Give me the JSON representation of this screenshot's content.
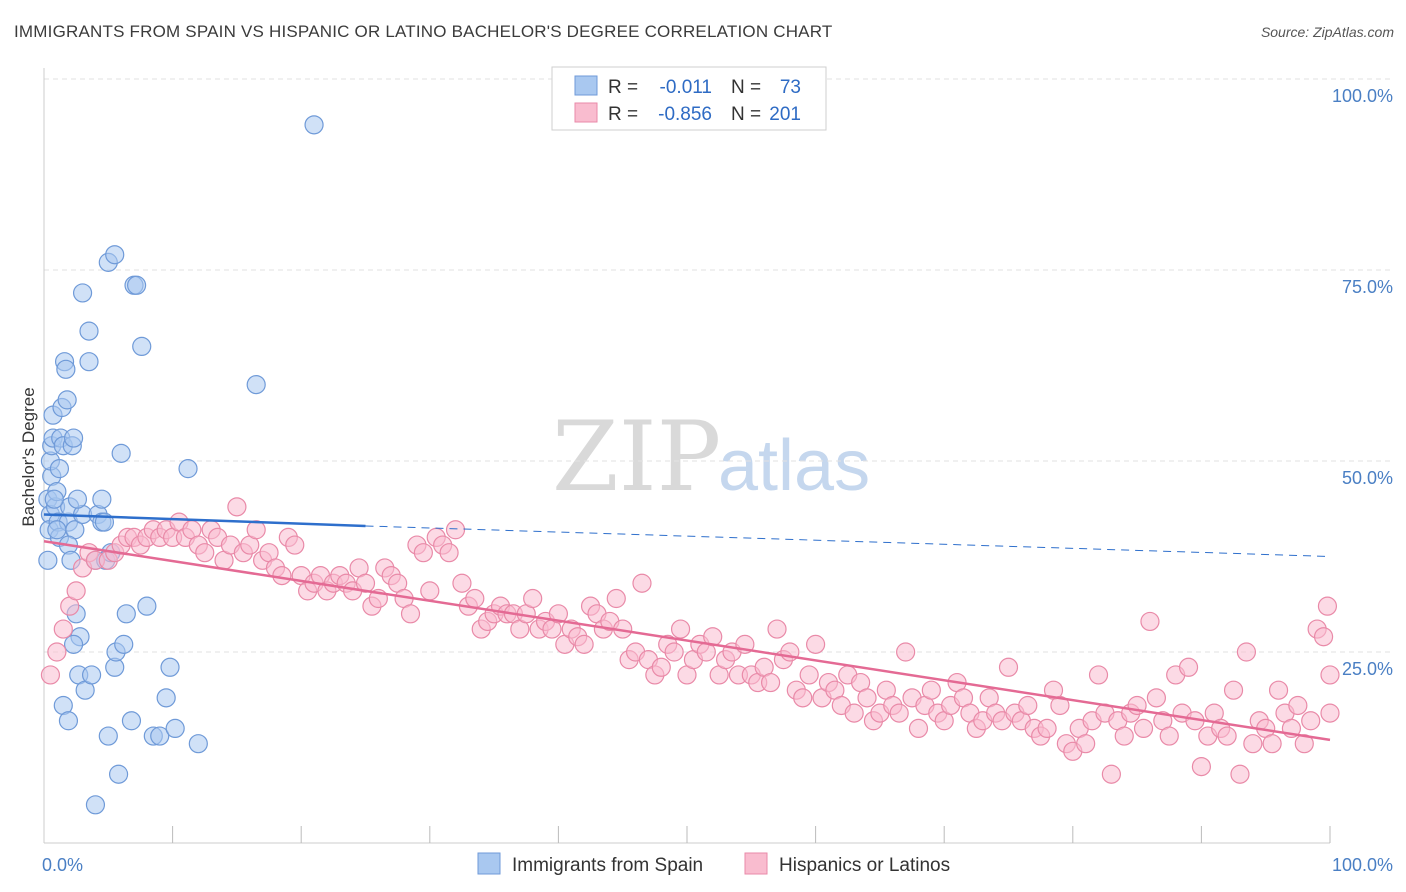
{
  "header": {
    "title": "IMMIGRANTS FROM SPAIN VS HISPANIC OR LATINO BACHELOR'S DEGREE CORRELATION CHART",
    "source": "Source: ZipAtlas.com"
  },
  "watermark": {
    "zip": "ZIP",
    "atlas": "atlas"
  },
  "legend": {
    "rows": [
      {
        "r_label": "R =",
        "r_value": "-0.011",
        "n_label": "N =",
        "n_value": "73",
        "color": "#a9c8f0",
        "stroke": "#6f9ad8"
      },
      {
        "r_label": "R =",
        "r_value": "-0.856",
        "n_label": "N =",
        "n_value": "201",
        "color": "#f9bccf",
        "stroke": "#e98aa8"
      }
    ]
  },
  "bottom_legend": [
    {
      "label": "Immigrants from Spain",
      "color": "#a9c8f0",
      "stroke": "#6f9ad8"
    },
    {
      "label": "Hispanics or Latinos",
      "color": "#f9bccf",
      "stroke": "#e98aa8"
    }
  ],
  "chart_data": {
    "type": "scatter",
    "title": "IMMIGRANTS FROM SPAIN VS HISPANIC OR LATINO BACHELOR'S DEGREE CORRELATION CHART",
    "xlabel": "",
    "ylabel": "Bachelor's Degree",
    "xlim": [
      0,
      100
    ],
    "ylim": [
      0,
      100
    ],
    "x_tick_labels": [
      {
        "value": 0,
        "label": "0.0%"
      },
      {
        "value": 100,
        "label": "100.0%"
      }
    ],
    "y_tick_labels": [
      {
        "value": 25,
        "label": "25.0%"
      },
      {
        "value": 50,
        "label": "50.0%"
      },
      {
        "value": 75,
        "label": "75.0%"
      },
      {
        "value": 100,
        "label": "100.0%"
      }
    ],
    "grid": true,
    "legend_position": "top-center",
    "series": [
      {
        "name": "Immigrants from Spain",
        "color": "#a9c8f0",
        "stroke": "#6f9ad8",
        "trend": {
          "x": [
            0,
            25
          ],
          "y": [
            43.0,
            41.5
          ],
          "dashed_to": [
            100,
            37.5
          ],
          "color": "#2e6fcc"
        },
        "points": [
          [
            0.3,
            45
          ],
          [
            0.5,
            43
          ],
          [
            0.4,
            41
          ],
          [
            0.3,
            37
          ],
          [
            0.6,
            48
          ],
          [
            0.5,
            50
          ],
          [
            0.6,
            52
          ],
          [
            0.7,
            53
          ],
          [
            0.7,
            56
          ],
          [
            0.9,
            44
          ],
          [
            1.0,
            46
          ],
          [
            1.1,
            42
          ],
          [
            1.2,
            40
          ],
          [
            1.2,
            49
          ],
          [
            1.3,
            53
          ],
          [
            1.4,
            57
          ],
          [
            1.5,
            52
          ],
          [
            1.6,
            63
          ],
          [
            1.7,
            62
          ],
          [
            1.8,
            58
          ],
          [
            1.9,
            42
          ],
          [
            2.0,
            44
          ],
          [
            2.2,
            52
          ],
          [
            2.3,
            53
          ],
          [
            2.4,
            41
          ],
          [
            1.9,
            39
          ],
          [
            2.1,
            37
          ],
          [
            2.5,
            30
          ],
          [
            2.7,
            22
          ],
          [
            2.8,
            27
          ],
          [
            2.3,
            26
          ],
          [
            3.0,
            72
          ],
          [
            3.0,
            43
          ],
          [
            3.2,
            20
          ],
          [
            3.5,
            63
          ],
          [
            3.5,
            67
          ],
          [
            3.7,
            22
          ],
          [
            1.5,
            18
          ],
          [
            1.9,
            16
          ],
          [
            4.0,
            37
          ],
          [
            4.2,
            43
          ],
          [
            4.5,
            42
          ],
          [
            4.8,
            37
          ],
          [
            5.0,
            76
          ],
          [
            5.5,
            77
          ],
          [
            4.5,
            45
          ],
          [
            4.7,
            42
          ],
          [
            5.0,
            14
          ],
          [
            5.2,
            38
          ],
          [
            5.5,
            23
          ],
          [
            5.6,
            25
          ],
          [
            5.8,
            9
          ],
          [
            6.0,
            51
          ],
          [
            6.2,
            26
          ],
          [
            6.4,
            30
          ],
          [
            6.8,
            16
          ],
          [
            7.0,
            73
          ],
          [
            7.2,
            73
          ],
          [
            7.6,
            65
          ],
          [
            8.0,
            31
          ],
          [
            8.5,
            14
          ],
          [
            9.0,
            14
          ],
          [
            9.5,
            19
          ],
          [
            9.8,
            23
          ],
          [
            10.2,
            15
          ],
          [
            11.2,
            49
          ],
          [
            12.0,
            13
          ],
          [
            16.5,
            60
          ],
          [
            21.0,
            94
          ],
          [
            4.0,
            5
          ],
          [
            0.8,
            45
          ],
          [
            1.0,
            41
          ],
          [
            2.6,
            45
          ]
        ]
      },
      {
        "name": "Hispanics or Latinos",
        "color": "#f9bccf",
        "stroke": "#e98aa8",
        "trend": {
          "x": [
            0,
            100
          ],
          "y": [
            39.5,
            13.5
          ],
          "color": "#e46a94"
        },
        "points": [
          [
            0.5,
            22
          ],
          [
            1.0,
            25
          ],
          [
            1.5,
            28
          ],
          [
            2.0,
            31
          ],
          [
            2.5,
            33
          ],
          [
            3.0,
            36
          ],
          [
            3.5,
            38
          ],
          [
            4.0,
            37
          ],
          [
            5.0,
            37
          ],
          [
            5.5,
            38
          ],
          [
            6.0,
            39
          ],
          [
            6.5,
            40
          ],
          [
            7.0,
            40
          ],
          [
            7.5,
            39
          ],
          [
            8.0,
            40
          ],
          [
            8.5,
            41
          ],
          [
            9.0,
            40
          ],
          [
            9.5,
            41
          ],
          [
            10.0,
            40
          ],
          [
            10.5,
            42
          ],
          [
            11.0,
            40
          ],
          [
            11.5,
            41
          ],
          [
            12.0,
            39
          ],
          [
            12.5,
            38
          ],
          [
            13.0,
            41
          ],
          [
            13.5,
            40
          ],
          [
            14.0,
            37
          ],
          [
            14.5,
            39
          ],
          [
            15.0,
            44
          ],
          [
            15.5,
            38
          ],
          [
            16.0,
            39
          ],
          [
            16.5,
            41
          ],
          [
            17.0,
            37
          ],
          [
            17.5,
            38
          ],
          [
            18.0,
            36
          ],
          [
            18.5,
            35
          ],
          [
            19.0,
            40
          ],
          [
            19.5,
            39
          ],
          [
            20.0,
            35
          ],
          [
            20.5,
            33
          ],
          [
            21.0,
            34
          ],
          [
            21.5,
            35
          ],
          [
            22.0,
            33
          ],
          [
            22.5,
            34
          ],
          [
            23.0,
            35
          ],
          [
            23.5,
            34
          ],
          [
            24.0,
            33
          ],
          [
            24.5,
            36
          ],
          [
            25.0,
            34
          ],
          [
            25.5,
            31
          ],
          [
            26.0,
            32
          ],
          [
            26.5,
            36
          ],
          [
            27.0,
            35
          ],
          [
            27.5,
            34
          ],
          [
            28.0,
            32
          ],
          [
            28.5,
            30
          ],
          [
            29.0,
            39
          ],
          [
            29.5,
            38
          ],
          [
            30.0,
            33
          ],
          [
            30.5,
            40
          ],
          [
            31.0,
            39
          ],
          [
            31.5,
            38
          ],
          [
            32.0,
            41
          ],
          [
            32.5,
            34
          ],
          [
            33.0,
            31
          ],
          [
            33.5,
            32
          ],
          [
            34.0,
            28
          ],
          [
            34.5,
            29
          ],
          [
            35.0,
            30
          ],
          [
            35.5,
            31
          ],
          [
            36.0,
            30
          ],
          [
            36.5,
            30
          ],
          [
            37.0,
            28
          ],
          [
            37.5,
            30
          ],
          [
            38.0,
            32
          ],
          [
            38.5,
            28
          ],
          [
            39.0,
            29
          ],
          [
            39.5,
            28
          ],
          [
            40.0,
            30
          ],
          [
            40.5,
            26
          ],
          [
            41.0,
            28
          ],
          [
            41.5,
            27
          ],
          [
            42.0,
            26
          ],
          [
            42.5,
            31
          ],
          [
            43.0,
            30
          ],
          [
            43.5,
            28
          ],
          [
            44.0,
            29
          ],
          [
            44.5,
            32
          ],
          [
            45.0,
            28
          ],
          [
            45.5,
            24
          ],
          [
            46.0,
            25
          ],
          [
            46.5,
            34
          ],
          [
            47.0,
            24
          ],
          [
            47.5,
            22
          ],
          [
            48.0,
            23
          ],
          [
            48.5,
            26
          ],
          [
            49.0,
            25
          ],
          [
            49.5,
            28
          ],
          [
            50.0,
            22
          ],
          [
            50.5,
            24
          ],
          [
            51.0,
            26
          ],
          [
            51.5,
            25
          ],
          [
            52.0,
            27
          ],
          [
            52.5,
            22
          ],
          [
            53.0,
            24
          ],
          [
            53.5,
            25
          ],
          [
            54.0,
            22
          ],
          [
            54.5,
            26
          ],
          [
            55.0,
            22
          ],
          [
            55.5,
            21
          ],
          [
            56.0,
            23
          ],
          [
            56.5,
            21
          ],
          [
            57.0,
            28
          ],
          [
            57.5,
            24
          ],
          [
            58.0,
            25
          ],
          [
            58.5,
            20
          ],
          [
            59.0,
            19
          ],
          [
            59.5,
            22
          ],
          [
            60.0,
            26
          ],
          [
            60.5,
            19
          ],
          [
            61.0,
            21
          ],
          [
            61.5,
            20
          ],
          [
            62.0,
            18
          ],
          [
            62.5,
            22
          ],
          [
            63.0,
            17
          ],
          [
            63.5,
            21
          ],
          [
            64.0,
            19
          ],
          [
            64.5,
            16
          ],
          [
            65.0,
            17
          ],
          [
            65.5,
            20
          ],
          [
            66.0,
            18
          ],
          [
            66.5,
            17
          ],
          [
            67.0,
            25
          ],
          [
            67.5,
            19
          ],
          [
            68.0,
            15
          ],
          [
            68.5,
            18
          ],
          [
            69.0,
            20
          ],
          [
            69.5,
            17
          ],
          [
            70.0,
            16
          ],
          [
            70.5,
            18
          ],
          [
            71.0,
            21
          ],
          [
            71.5,
            19
          ],
          [
            72.0,
            17
          ],
          [
            72.5,
            15
          ],
          [
            73.0,
            16
          ],
          [
            73.5,
            19
          ],
          [
            74.0,
            17
          ],
          [
            74.5,
            16
          ],
          [
            75.0,
            23
          ],
          [
            75.5,
            17
          ],
          [
            76.0,
            16
          ],
          [
            76.5,
            18
          ],
          [
            77.0,
            15
          ],
          [
            77.5,
            14
          ],
          [
            78.0,
            15
          ],
          [
            78.5,
            20
          ],
          [
            79.0,
            18
          ],
          [
            79.5,
            13
          ],
          [
            80.0,
            12
          ],
          [
            80.5,
            15
          ],
          [
            81.0,
            13
          ],
          [
            81.5,
            16
          ],
          [
            82.0,
            22
          ],
          [
            82.5,
            17
          ],
          [
            83.0,
            9
          ],
          [
            83.5,
            16
          ],
          [
            84.0,
            14
          ],
          [
            84.5,
            17
          ],
          [
            85.0,
            18
          ],
          [
            85.5,
            15
          ],
          [
            86.0,
            29
          ],
          [
            86.5,
            19
          ],
          [
            87.0,
            16
          ],
          [
            87.5,
            14
          ],
          [
            88.0,
            22
          ],
          [
            88.5,
            17
          ],
          [
            89.0,
            23
          ],
          [
            89.5,
            16
          ],
          [
            90.0,
            10
          ],
          [
            90.5,
            14
          ],
          [
            91.0,
            17
          ],
          [
            91.5,
            15
          ],
          [
            92.0,
            14
          ],
          [
            92.5,
            20
          ],
          [
            93.0,
            9
          ],
          [
            93.5,
            25
          ],
          [
            94.0,
            13
          ],
          [
            94.5,
            16
          ],
          [
            95.0,
            15
          ],
          [
            95.5,
            13
          ],
          [
            96.0,
            20
          ],
          [
            96.5,
            17
          ],
          [
            97.0,
            15
          ],
          [
            97.5,
            18
          ],
          [
            98.0,
            13
          ],
          [
            98.5,
            16
          ],
          [
            99.0,
            28
          ],
          [
            99.5,
            27
          ],
          [
            99.8,
            31
          ],
          [
            100.0,
            22
          ],
          [
            100.0,
            17
          ]
        ]
      }
    ]
  }
}
